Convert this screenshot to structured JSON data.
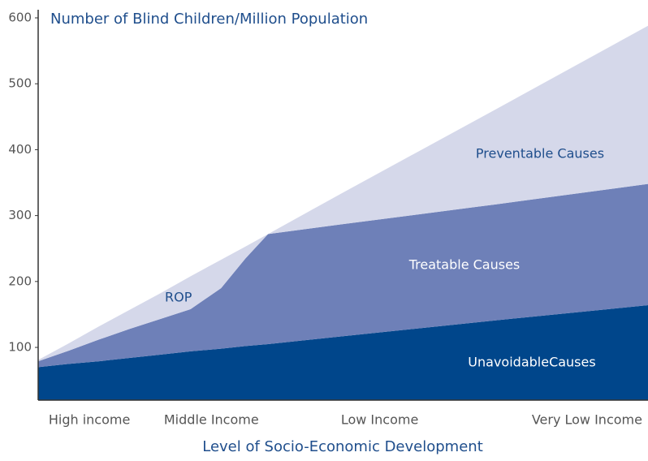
{
  "chart_data": {
    "type": "stacked_area",
    "title": "Number of Blind Children/Million Population",
    "x_label": "Level of Socio-Economic Development",
    "x": [
      0,
      5,
      10,
      15,
      20,
      25,
      30,
      34,
      37.7,
      50,
      75,
      100
    ],
    "series": [
      {
        "name": "UnavoidableCauses",
        "color": "#00468b",
        "values": [
          70,
          75,
          79,
          84,
          89,
          94,
          98,
          102,
          105,
          117,
          141,
          164
        ]
      },
      {
        "name": "Treatable Causes",
        "color": "#6e80b8",
        "values": [
          9,
          20,
          33,
          44,
          54,
          64,
          92,
          133,
          167,
          170,
          176,
          184
        ]
      },
      {
        "name": "Preventable Causes",
        "color": "#d5d8ea",
        "values": [
          2,
          11,
          20,
          29,
          39,
          50,
          43,
          18,
          0,
          48,
          144,
          240
        ]
      }
    ],
    "annotations": [
      {
        "text": "ROP",
        "x": 23,
        "y": 175
      }
    ],
    "xlim": [
      0,
      100
    ],
    "xticks": [
      {
        "value": 8.4,
        "label": "High income"
      },
      {
        "value": 28.4,
        "label": "Middle Income"
      },
      {
        "value": 56,
        "label": "Low Income"
      },
      {
        "value": 90,
        "label": "Very Low Income"
      }
    ],
    "ylim": [
      20,
      600
    ],
    "yticks": [
      100,
      200,
      300,
      400,
      500,
      600
    ]
  }
}
